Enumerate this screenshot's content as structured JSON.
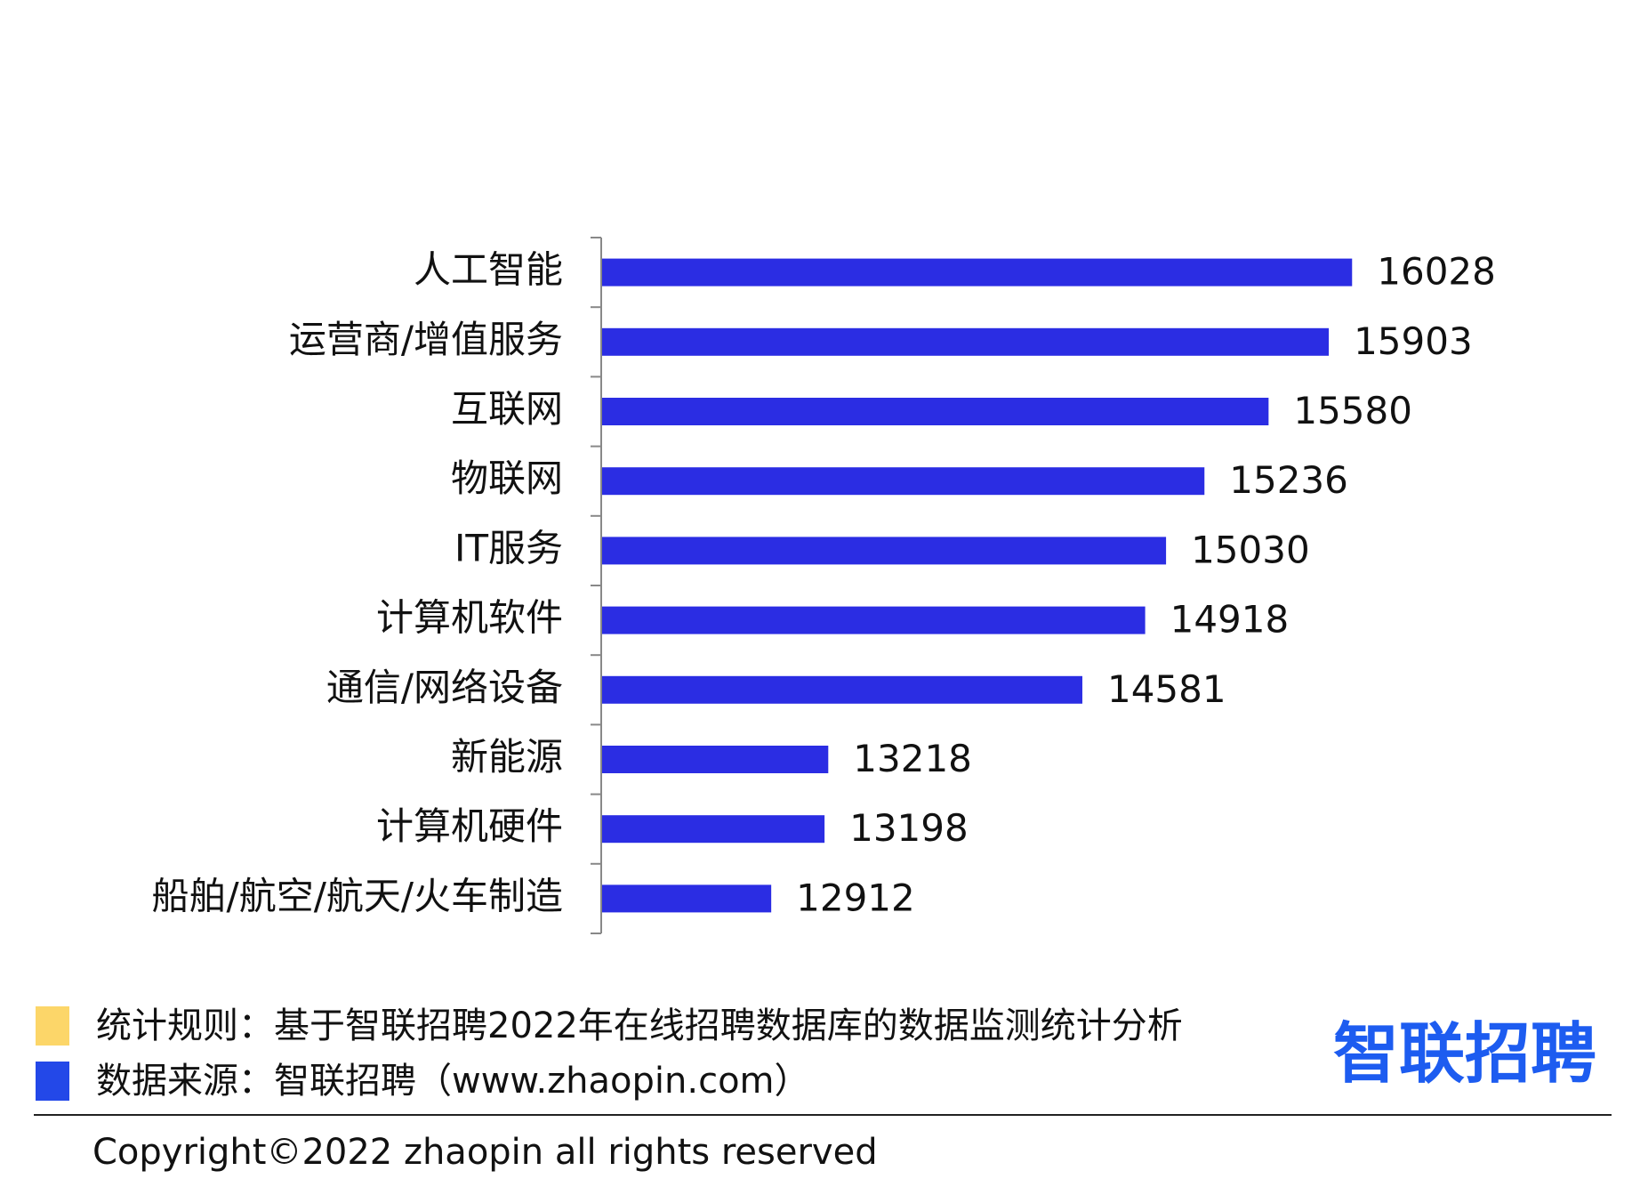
{
  "chart_data": {
    "type": "bar",
    "orientation": "horizontal",
    "categories": [
      "人工智能",
      "运营商/增值服务",
      "互联网",
      "物联网",
      "IT服务",
      "计算机软件",
      "通信/网络设备",
      "新能源",
      "计算机硬件",
      "船舶/航空/航天/火车制造"
    ],
    "values": [
      16028,
      15903,
      15580,
      15236,
      15030,
      14918,
      14581,
      13218,
      13198,
      12912
    ],
    "color": "#2b2de3",
    "xlim": [
      12000,
      17000
    ]
  },
  "footer": {
    "legend": [
      {
        "label": "统计规则：基于智联招聘2022年在线招聘数据库的数据监测统计分析",
        "color": "#fcd669"
      },
      {
        "label": "数据来源：智联招聘（www.zhaopin.com）",
        "color": "#2348e8"
      }
    ],
    "logo": "智联招聘",
    "copyright": "Copyright©2022 zhaopin all rights reserved"
  }
}
